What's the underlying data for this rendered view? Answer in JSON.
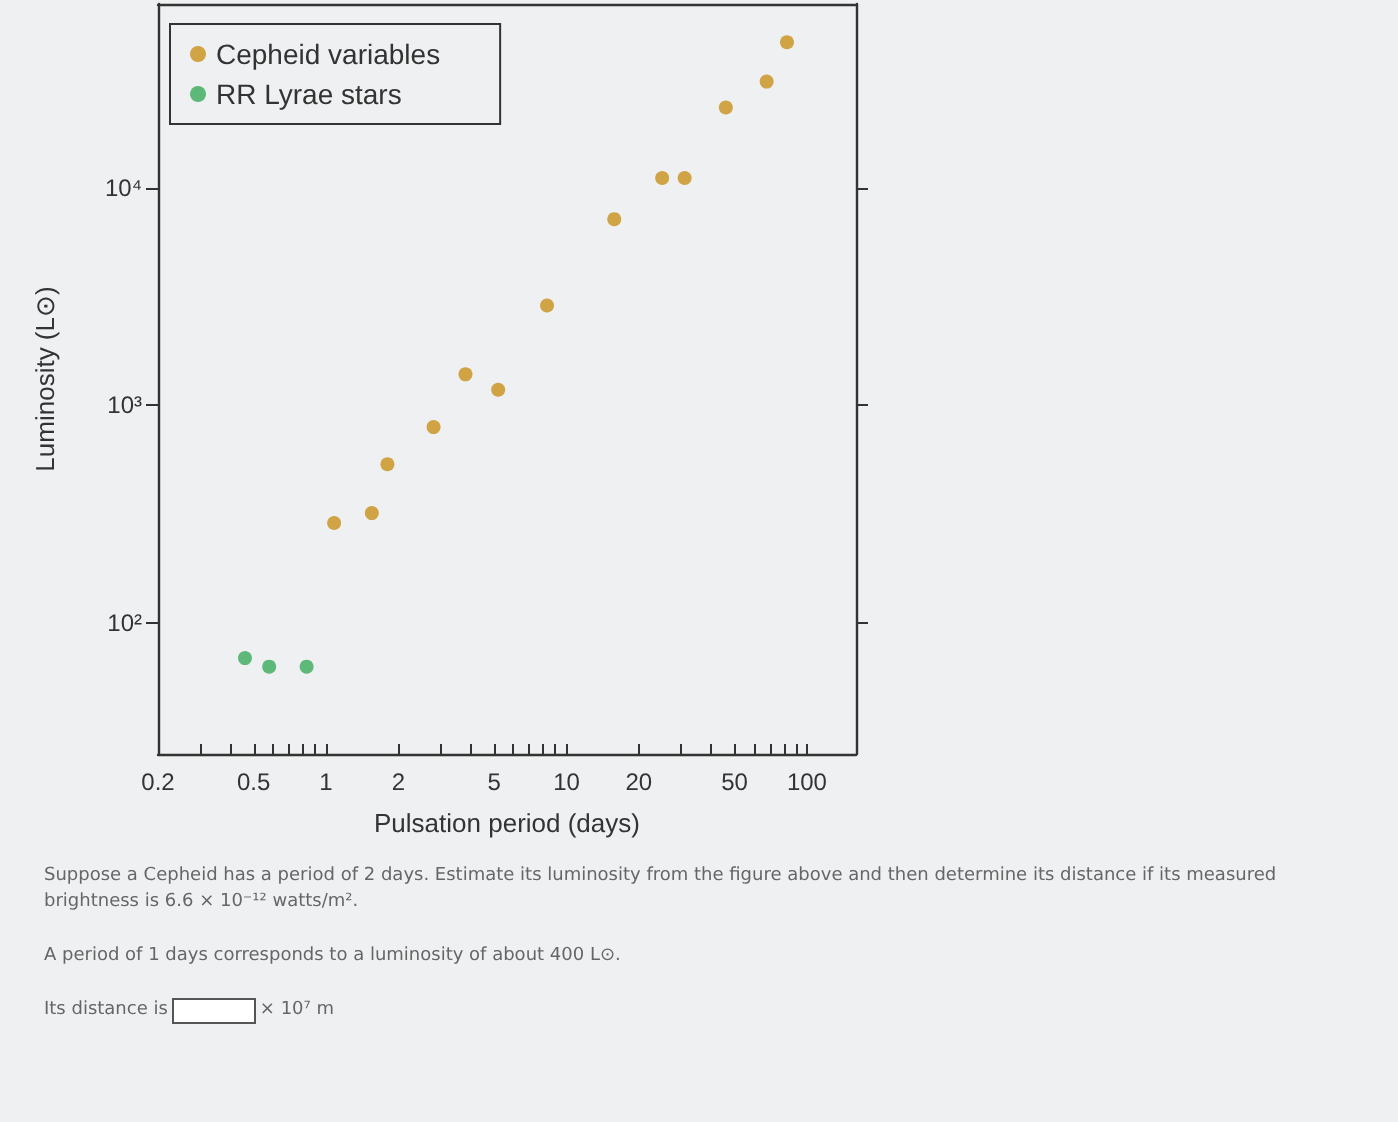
{
  "chart_data": {
    "type": "scatter",
    "xlabel": "Pulsation period (days)",
    "ylabel": "Luminosity (L⊙)",
    "log": "xy",
    "grid": false,
    "legend": "top left",
    "marker": "circle",
    "xlim": [
      0.2,
      160
    ],
    "ylim": [
      25,
      70000
    ],
    "xticks": [
      0.2,
      {
        "value": 0.3,
        "label": null
      },
      {
        "value": 0.4,
        "label": null
      },
      0.5,
      {
        "value": 0.6,
        "label": null
      },
      {
        "value": 0.7,
        "label": null
      },
      {
        "value": 0.8,
        "label": null
      },
      {
        "value": 0.9,
        "label": null
      },
      1,
      2,
      {
        "value": 3,
        "label": null
      },
      {
        "value": 4,
        "label": null
      },
      5,
      {
        "value": 6,
        "label": null
      },
      {
        "value": 7,
        "label": null
      },
      {
        "value": 8,
        "label": null
      },
      {
        "value": 9,
        "label": null
      },
      10,
      20,
      {
        "value": 30,
        "label": null
      },
      {
        "value": 40,
        "label": null
      },
      50,
      {
        "value": 60,
        "label": null
      },
      {
        "value": 70,
        "label": null
      },
      {
        "value": 80,
        "label": null
      },
      {
        "value": 90,
        "label": null
      },
      100
    ],
    "yticks": [
      {
        "value": 100,
        "label": "10²"
      },
      {
        "value": 1000,
        "label": "10³"
      },
      {
        "value": 10000,
        "label": "10⁴"
      }
    ],
    "series": [
      {
        "name": "Cepheid variables",
        "color": "#c8901a",
        "x": [
          1.08,
          1.55,
          1.8,
          2.8,
          3.8,
          5.2,
          8.3,
          15.8,
          25,
          31,
          46,
          68,
          82.6
        ],
        "values": [
          288,
          320,
          537,
          795,
          1390,
          1180,
          2880,
          7180,
          11100,
          11100,
          23400,
          30800,
          46700
        ]
      },
      {
        "name": "RR Lyrae stars",
        "color": "#3aaa5a",
        "x": [
          0.46,
          0.58,
          0.83
        ],
        "values": [
          69,
          63,
          63
        ]
      }
    ],
    "annotations": [
      "Suppose a Cepheid has a period of 2 days. Estimate its luminosity from the figure above and then determine its distance if its measured brightness is 6.6 × 10⁻¹² watts/m².",
      "A period of 1 days corresponds to a luminosity of about 400 L⊙.",
      "Its distance is",
      "× 10⁷ m"
    ]
  }
}
